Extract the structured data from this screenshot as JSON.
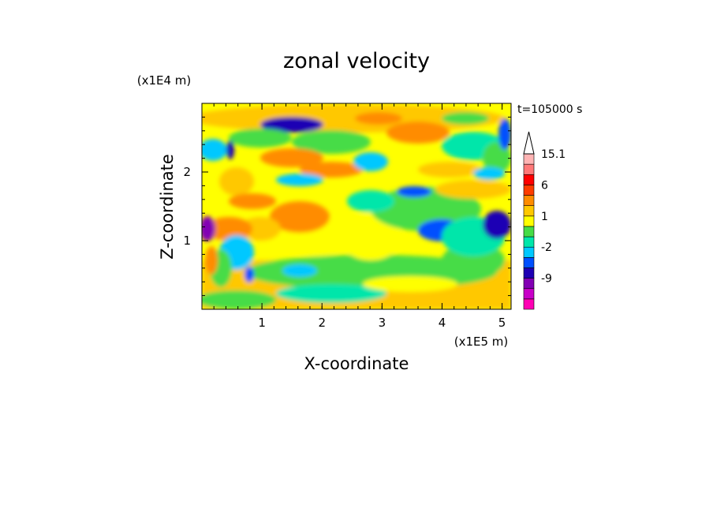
{
  "chart_data": {
    "type": "heatmap",
    "title": "zonal velocity",
    "xlabel": "X-coordinate",
    "ylabel": "Z-coordinate",
    "x_unit": "(x1E5 m)",
    "y_unit": "(x1E4 m)",
    "time_label": "t=105000 s",
    "x_ticks": [
      "1",
      "2",
      "3",
      "4",
      "5"
    ],
    "y_ticks": [
      "1",
      "2"
    ],
    "xlim": [
      0,
      5.15
    ],
    "ylim": [
      0,
      3.0
    ],
    "colorbar": {
      "tick_labels": [
        "15.1",
        "6",
        "1",
        "-2",
        "-9"
      ],
      "levels": [
        -15,
        -12,
        -9,
        -6,
        -4,
        -2,
        -1,
        0,
        1,
        2,
        4,
        6,
        9,
        12,
        15.1
      ],
      "colors": [
        "#ff00b4",
        "#c800c8",
        "#8200b4",
        "#1e00b4",
        "#0050ff",
        "#00c8ff",
        "#00e6aa",
        "#46dc46",
        "#ffff00",
        "#ffc800",
        "#ff8c00",
        "#ff3c00",
        "#ff0000",
        "#ff7878",
        "#ffb4b4"
      ]
    },
    "field_pattern": "oblique wave bands; blue/purple minima near upper-left and right edges, orange maxima in middle layers, yellow/green lower half"
  }
}
